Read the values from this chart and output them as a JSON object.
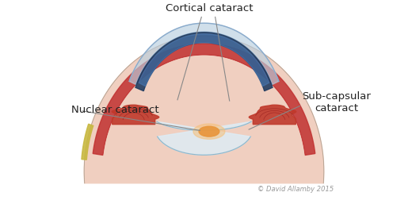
{
  "background_color": "#ffffff",
  "labels": {
    "cortical": "Cortical cataract",
    "nuclear": "Nuclear cataract",
    "subcapsular": "Sub-capsular\ncataract",
    "copyright": "© David Allamby 2015"
  },
  "colors": {
    "sclera_outer": "#c8d8e8",
    "iris_dark": "#1e3a5f",
    "ciliary_red": "#c0392b",
    "choroid_red": "#c03030",
    "nuclear_color": "#e8963c",
    "nuclear_glow": "#f5c07a",
    "conjunctiva": "#ecc8b0",
    "sclera_pink": "#f0cfc0",
    "cornea_blue": "#4a7ab5",
    "cornea_light": "#b8cfe0",
    "yellow_border": "#c8b840",
    "annotation_line": "#888888",
    "text_color": "#222222",
    "copyright_color": "#999999",
    "lens_fill": "#ddeef8",
    "lens_border": "#90b8cc"
  },
  "figsize": [
    5.15,
    2.53
  ],
  "dpi": 100
}
